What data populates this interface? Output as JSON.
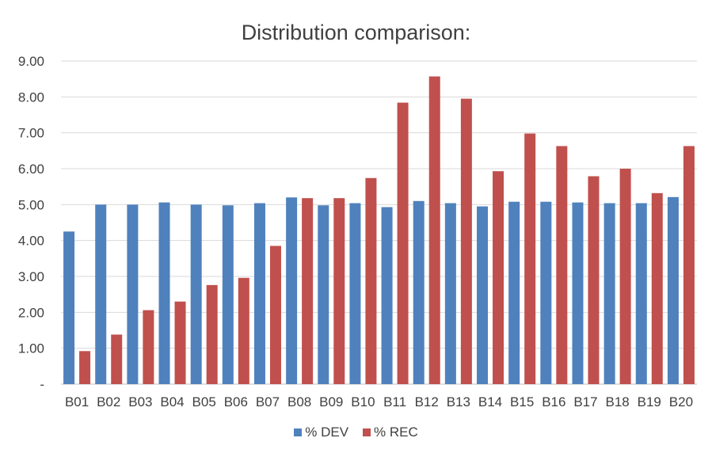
{
  "chart_data": {
    "type": "bar",
    "title": "Distribution comparison:",
    "xlabel": "",
    "ylabel": "",
    "ylim": [
      0,
      9
    ],
    "y_ticks": [
      0,
      1,
      2,
      3,
      4,
      5,
      6,
      7,
      8,
      9
    ],
    "y_tick_labels": [
      "-",
      "1.00",
      "2.00",
      "3.00",
      "4.00",
      "5.00",
      "6.00",
      "7.00",
      "8.00",
      "9.00"
    ],
    "grid": true,
    "legend_position": "bottom",
    "categories": [
      "B01",
      "B02",
      "B03",
      "B04",
      "B05",
      "B06",
      "B07",
      "B08",
      "B09",
      "B10",
      "B11",
      "B12",
      "B13",
      "B14",
      "B15",
      "B16",
      "B17",
      "B18",
      "B19",
      "B20"
    ],
    "series": [
      {
        "name": "% DEV",
        "color": "#4F81BD",
        "values": [
          4.25,
          5.0,
          5.0,
          5.06,
          5.0,
          4.98,
          5.04,
          5.2,
          4.98,
          5.04,
          4.93,
          5.1,
          5.04,
          4.95,
          5.08,
          5.08,
          5.06,
          5.04,
          5.04,
          5.21
        ]
      },
      {
        "name": "% REC",
        "color": "#C0504D",
        "values": [
          0.92,
          1.38,
          2.06,
          2.3,
          2.76,
          2.96,
          3.85,
          5.18,
          5.18,
          5.74,
          7.84,
          8.57,
          7.95,
          5.93,
          6.98,
          6.63,
          5.79,
          6.0,
          5.32,
          6.63
        ]
      }
    ]
  }
}
